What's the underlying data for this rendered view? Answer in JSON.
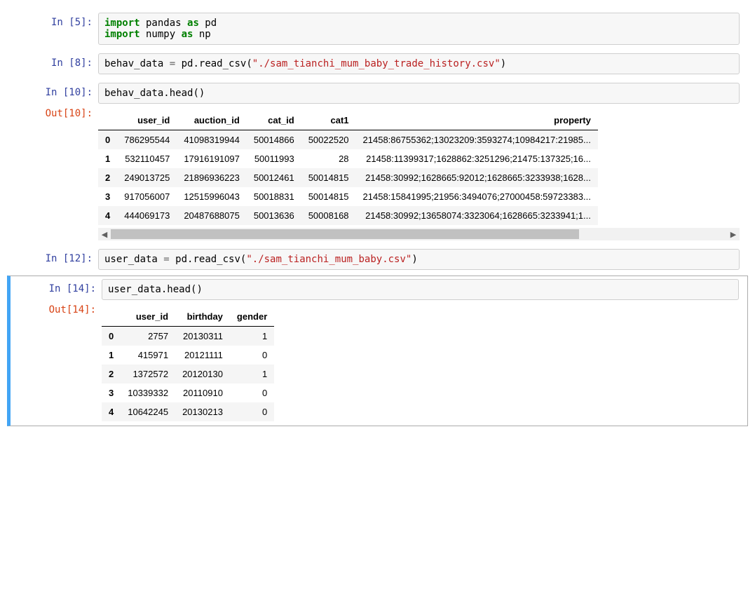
{
  "colors": {
    "keyword": "#008000",
    "string": "#ba2121",
    "prompt_in": "#303f9f",
    "prompt_out": "#d84315",
    "cell_border": "#cfcfcf",
    "cell_bg": "#f7f7f7",
    "selected_border": "#42a5f5",
    "row_stripe": "#f5f5f5",
    "scrollbar_track": "#f1f1f1",
    "scrollbar_thumb": "#c1c1c1"
  },
  "cells": [
    {
      "prompt": "In  [5]:",
      "code_tokens": [
        {
          "t": "import",
          "c": "kw"
        },
        {
          "t": " pandas ",
          "c": "nm"
        },
        {
          "t": "as",
          "c": "kw"
        },
        {
          "t": " pd",
          "c": "nm"
        },
        {
          "t": "\n",
          "c": "nm"
        },
        {
          "t": "import",
          "c": "kw"
        },
        {
          "t": " numpy ",
          "c": "nm"
        },
        {
          "t": "as",
          "c": "kw"
        },
        {
          "t": " np",
          "c": "nm"
        }
      ]
    },
    {
      "prompt": "In  [8]:",
      "code_tokens": [
        {
          "t": "behav_data ",
          "c": "nm"
        },
        {
          "t": "=",
          "c": "op"
        },
        {
          "t": " pd",
          "c": "nm"
        },
        {
          "t": ".",
          "c": "pn"
        },
        {
          "t": "read_csv",
          "c": "nm"
        },
        {
          "t": "(",
          "c": "pn"
        },
        {
          "t": "\"./sam_tianchi_mum_baby_trade_history.csv\"",
          "c": "str"
        },
        {
          "t": ")",
          "c": "pn"
        }
      ]
    },
    {
      "prompt": "In [10]:",
      "code_tokens": [
        {
          "t": "behav_data",
          "c": "nm"
        },
        {
          "t": ".",
          "c": "pn"
        },
        {
          "t": "head",
          "c": "nm"
        },
        {
          "t": "()",
          "c": "pn"
        }
      ],
      "output": {
        "prompt": "Out[10]:",
        "table": {
          "columns": [
            "user_id",
            "auction_id",
            "cat_id",
            "cat1",
            "property"
          ],
          "index": [
            "0",
            "1",
            "2",
            "3",
            "4"
          ],
          "rows": [
            [
              "786295544",
              "41098319944",
              "50014866",
              "50022520",
              "21458:86755362;13023209:3593274;10984217:21985..."
            ],
            [
              "532110457",
              "17916191097",
              "50011993",
              "28",
              "21458:11399317;1628862:3251296;21475:137325;16..."
            ],
            [
              "249013725",
              "21896936223",
              "50012461",
              "50014815",
              "21458:30992;1628665:92012;1628665:3233938;1628..."
            ],
            [
              "917056007",
              "12515996043",
              "50018831",
              "50014815",
              "21458:15841995;21956:3494076;27000458:59723383..."
            ],
            [
              "444069173",
              "20487688075",
              "50013636",
              "50008168",
              "21458:30992;13658074:3323064;1628665:3233941;1..."
            ]
          ],
          "has_hscroll": true,
          "thumb_width_pct": 76
        }
      }
    },
    {
      "prompt": "In [12]:",
      "code_tokens": [
        {
          "t": "user_data ",
          "c": "nm"
        },
        {
          "t": "=",
          "c": "op"
        },
        {
          "t": " pd",
          "c": "nm"
        },
        {
          "t": ".",
          "c": "pn"
        },
        {
          "t": "read_csv",
          "c": "nm"
        },
        {
          "t": "(",
          "c": "pn"
        },
        {
          "t": "\"./sam_tianchi_mum_baby.csv\"",
          "c": "str"
        },
        {
          "t": ")",
          "c": "pn"
        }
      ]
    },
    {
      "prompt": "In [14]:",
      "selected": true,
      "code_tokens": [
        {
          "t": "user_data",
          "c": "nm"
        },
        {
          "t": ".",
          "c": "pn"
        },
        {
          "t": "head",
          "c": "nm"
        },
        {
          "t": "()",
          "c": "pn"
        }
      ],
      "output": {
        "prompt": "Out[14]:",
        "table": {
          "columns": [
            "user_id",
            "birthday",
            "gender"
          ],
          "index": [
            "0",
            "1",
            "2",
            "3",
            "4"
          ],
          "rows": [
            [
              "2757",
              "20130311",
              "1"
            ],
            [
              "415971",
              "20121111",
              "0"
            ],
            [
              "1372572",
              "20120130",
              "1"
            ],
            [
              "10339332",
              "20110910",
              "0"
            ],
            [
              "10642245",
              "20130213",
              "0"
            ]
          ],
          "has_hscroll": false
        }
      }
    }
  ]
}
